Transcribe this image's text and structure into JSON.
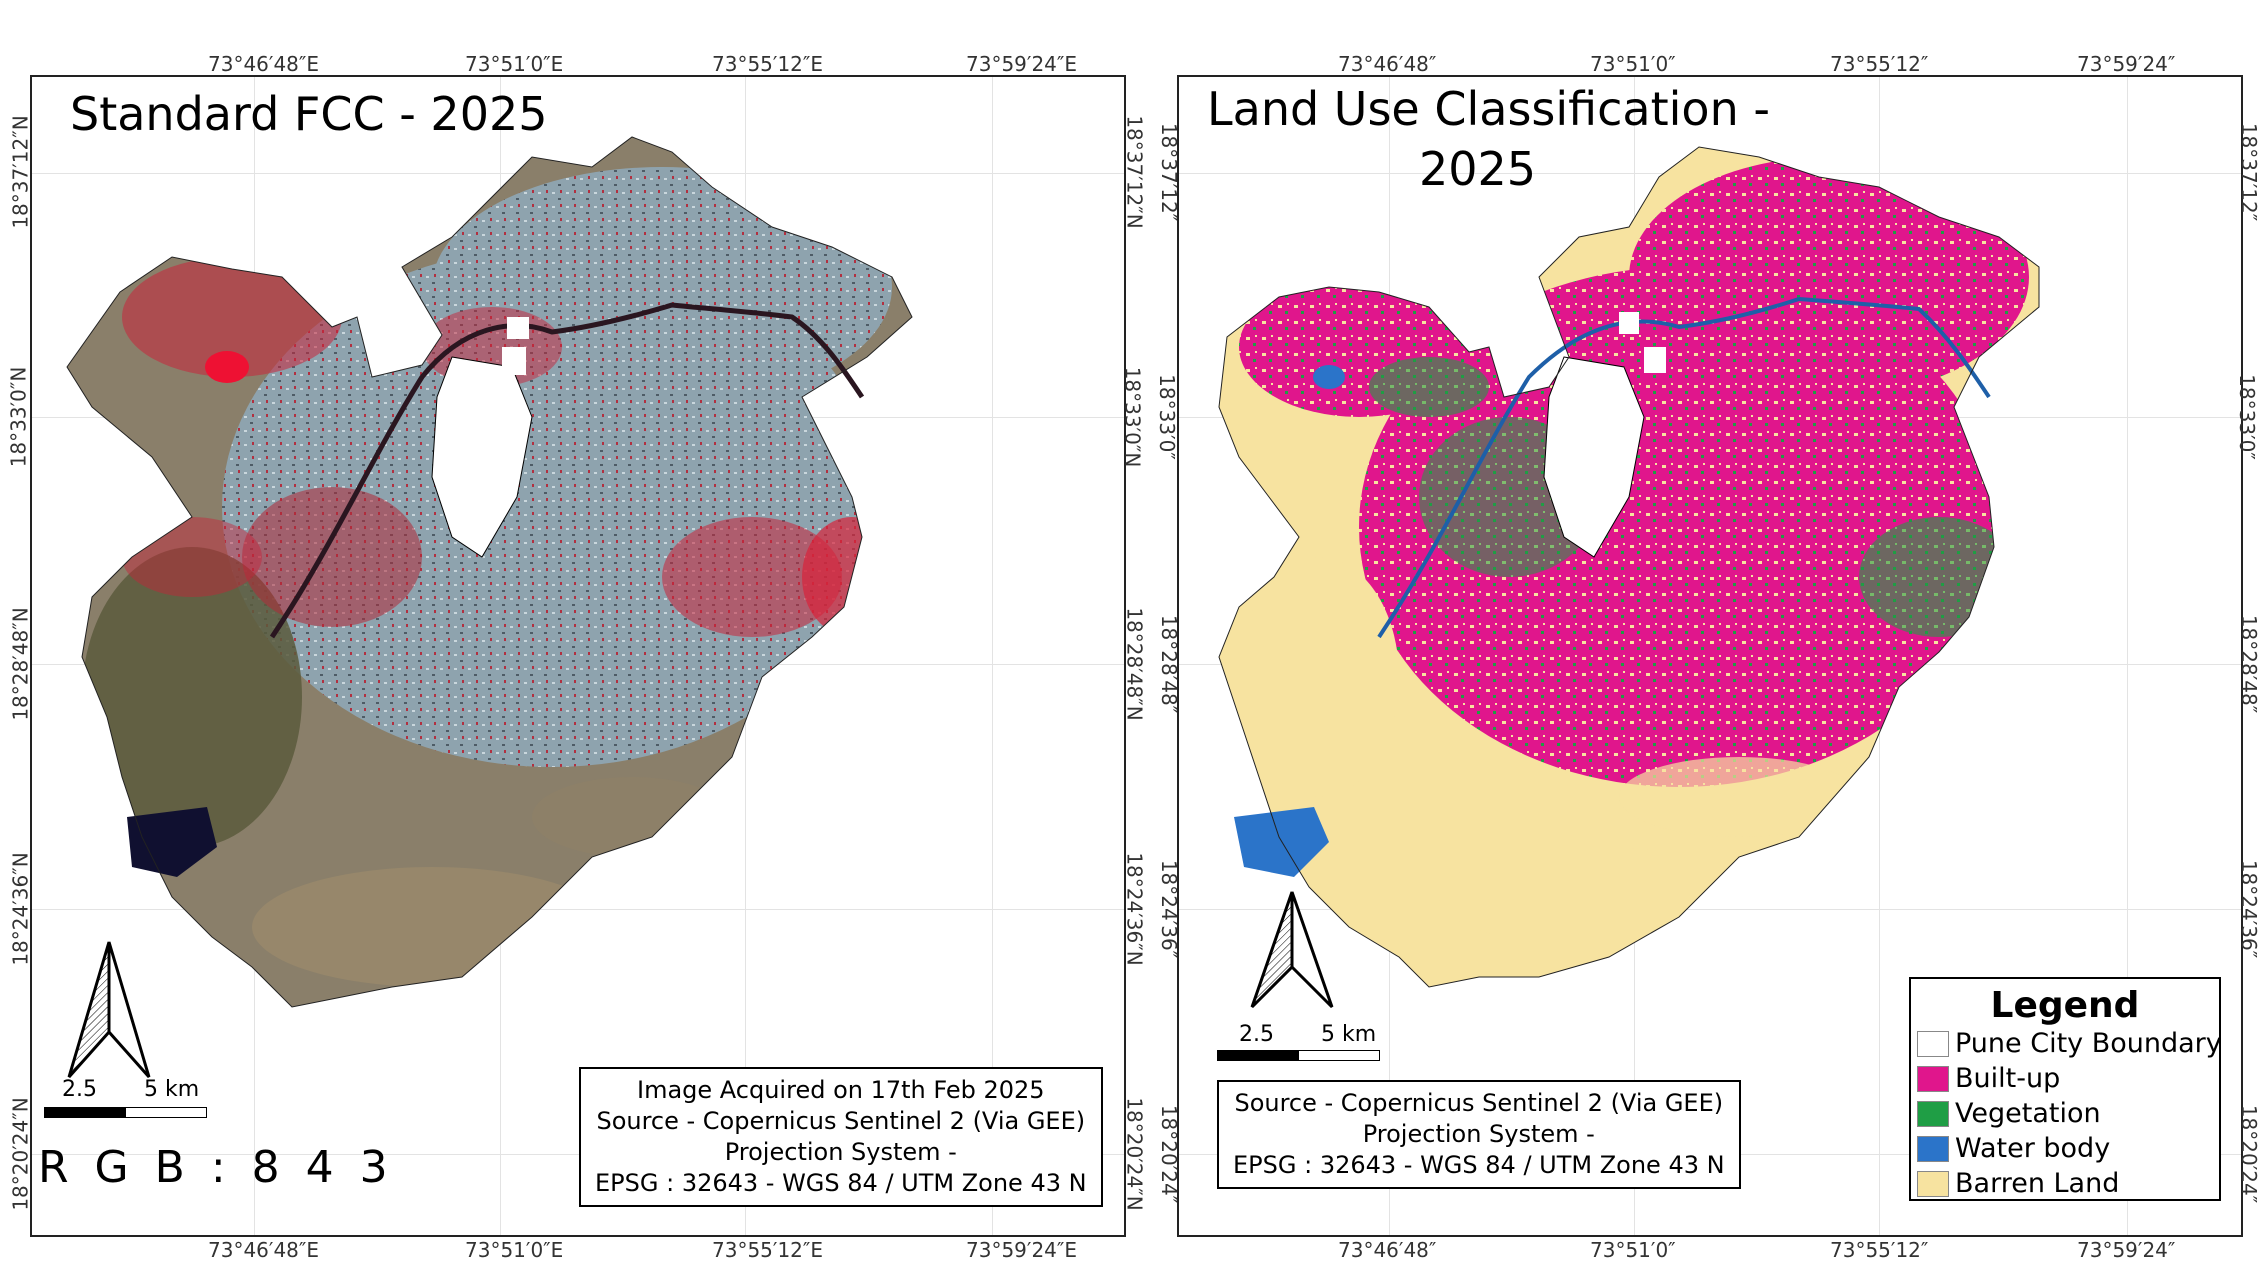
{
  "left_map": {
    "title": "Standard FCC - 2025",
    "rgb_label": "R G B : 8 4 3",
    "info": [
      "Image Acquired on 17th Feb 2025",
      "Source - Copernicus Sentinel 2 (Via GEE)",
      "Projection System -",
      "EPSG : 32643 - WGS 84 / UTM Zone 43 N"
    ],
    "lon_labels": [
      "73°46′48″E",
      "73°51′0″E",
      "73°55′12″E",
      "73°59′24″E"
    ],
    "lat_labels": [
      "18°37′12″N",
      "18°33′0″N",
      "18°28′48″N",
      "18°24′36″N",
      "18°20′24″N"
    ],
    "scale": {
      "zero": "",
      "mid": "2.5",
      "end": "5 km"
    }
  },
  "right_map": {
    "title_line1": "Land Use Classification -",
    "title_line2": "2025",
    "info": [
      "Source - Copernicus Sentinel 2 (Via GEE)",
      "Projection System -",
      "EPSG : 32643 - WGS 84 / UTM Zone 43 N"
    ],
    "lon_labels": [
      "73°46′48″",
      "73°51′0″",
      "73°55′12″",
      "73°59′24″"
    ],
    "lat_labels": [
      "18°37′12″",
      "18°33′0″",
      "18°28′48″",
      "18°24′36″",
      "18°20′24″"
    ],
    "scale": {
      "mid": "2.5",
      "end": "5 km"
    },
    "legend": {
      "title": "Legend",
      "items": [
        {
          "label": "Pune City Boundary",
          "color": "#ffffff"
        },
        {
          "label": "Built-up",
          "color": "#e0168c"
        },
        {
          "label": "Vegetation",
          "color": "#1f9e45"
        },
        {
          "label": "Water body",
          "color": "#2b74c9"
        },
        {
          "label": "Barren Land",
          "color": "#f7e3a0"
        }
      ]
    }
  },
  "colors": {
    "fcc_background": "#8a7f6a",
    "fcc_urban": "#8ea3ae",
    "fcc_vegetation": "#c8243a",
    "fcc_dark_water": "#101030",
    "river": "#1e5fa8"
  }
}
